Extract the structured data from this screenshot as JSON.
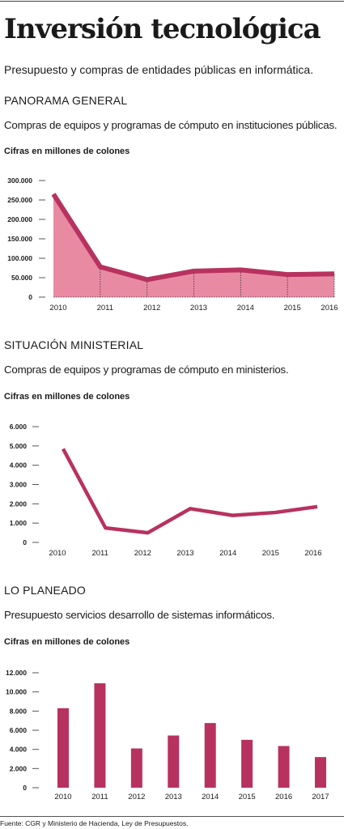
{
  "header": {
    "title": "Inversión tecnológica",
    "subtitle": "Presupuesto y compras de entidades públicas en informática."
  },
  "sections": [
    {
      "title": "PANORAMA GENERAL",
      "description": "Compras de equipos y programas de cómputo en instituciones públicas.",
      "units": "Cifras en millones de colones"
    },
    {
      "title": "SITUACIÓN MINISTERIAL",
      "description": "Compras de equipos y programas de cómputo en ministerios.",
      "units": "Cifras en millones de colones"
    },
    {
      "title": "LO PLANEADO",
      "description": "Presupuesto servicios desarrollo de sistemas informáticos.",
      "units": "Cifras en millones de colones"
    }
  ],
  "source": "Fuente: CGR y Ministerio de Hacienda, Ley de Presupuestos.",
  "colors": {
    "primary": "#b8325f",
    "area_fill": "#e98aa3",
    "text": "#1a1a1a"
  },
  "chart_data": [
    {
      "type": "area",
      "x": [
        "2010",
        "2011",
        "2012",
        "2013",
        "2014",
        "2015",
        "2016"
      ],
      "values": [
        265000,
        78000,
        45000,
        67000,
        70000,
        58000,
        60000
      ],
      "ylabel": "Cifras en millones de colones",
      "yticks": [
        "0",
        "50.000",
        "100.000",
        "150.000",
        "200.000",
        "250.000",
        "300.000"
      ],
      "ylim": [
        0,
        300000
      ],
      "grid": false,
      "legend": "none"
    },
    {
      "type": "line",
      "x": [
        "2010",
        "2011",
        "2012",
        "2013",
        "2014",
        "2015",
        "2016"
      ],
      "values": [
        4850,
        750,
        500,
        1750,
        1400,
        1550,
        1850
      ],
      "ylabel": "Cifras en millones de colones",
      "yticks": [
        "0",
        "1.000",
        "2.000",
        "3.000",
        "4.000",
        "5.000",
        "6.000"
      ],
      "ylim": [
        0,
        6000
      ],
      "grid": false,
      "legend": "none"
    },
    {
      "type": "bar",
      "categories": [
        "2010",
        "2011",
        "2012",
        "2013",
        "2014",
        "2015",
        "2016",
        "2017"
      ],
      "values": [
        8300,
        10900,
        4100,
        5450,
        6750,
        5000,
        4350,
        3200
      ],
      "ylabel": "Cifras en millones de colones",
      "yticks": [
        "0",
        "2.000",
        "4.000",
        "6.000",
        "8.000",
        "10.000",
        "12.000"
      ],
      "ylim": [
        0,
        12000
      ],
      "grid": false,
      "legend": "none"
    }
  ]
}
